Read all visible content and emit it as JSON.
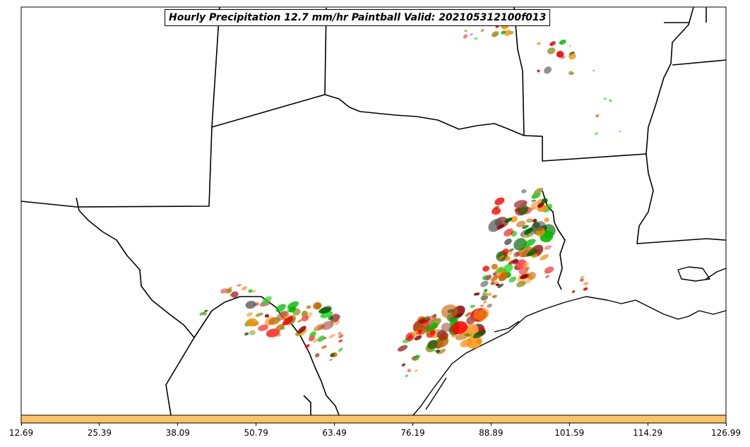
{
  "title": "Hourly Precipitation 12.7 mm/hr Paintball Valid: 202105312100f013",
  "colorbar": {
    "color": "#ffc266",
    "ticks": [
      "12.69",
      "25.39",
      "38.09",
      "50.79",
      "63.49",
      "76.19",
      "88.89",
      "101.59",
      "114.29",
      "126.99"
    ]
  },
  "ensemble_colors": [
    "#ff0000",
    "#00bb00",
    "#ff8c00",
    "#8b0000",
    "#006400",
    "#ffa040",
    "#9a9a30",
    "#555555",
    "#ff5050",
    "#cc6600",
    "#22dd22",
    "#b05050"
  ]
}
